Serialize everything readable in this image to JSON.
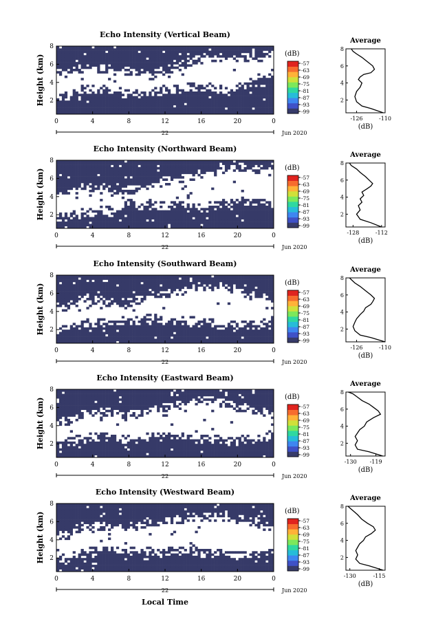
{
  "figure": {
    "common_xlabel": "Local Time",
    "date_label": "Jun 2020",
    "day_label": "22",
    "colorbar_unit": "(dB)",
    "colorbar_ticks": [
      "-57",
      "-63",
      "-69",
      "-75",
      "-81",
      "-87",
      "-93",
      "-99"
    ],
    "colorbar_colors": [
      "#373b6a",
      "#3f51c7",
      "#3e86f0",
      "#27bcd8",
      "#2fd8a0",
      "#7ce85b",
      "#d0e03a",
      "#ffb238",
      "#f76c2e",
      "#e0241f"
    ],
    "heatmap_fill": "#363a68",
    "average_title": "Average",
    "average_xunit": "(dB)"
  },
  "chart_data": [
    {
      "type": "heatmap",
      "title": "Echo Intensity (Vertical Beam)",
      "xlabel": "Local Time",
      "ylabel": "Height (km)",
      "xticks": [
        "0",
        "4",
        "8",
        "12",
        "16",
        "20",
        "0"
      ],
      "yticks": [
        "2",
        "4",
        "6",
        "8"
      ],
      "xlim": [
        0,
        24
      ],
      "ylim": [
        0.5,
        8
      ],
      "profile": {
        "h": [
          0.5,
          1.0,
          2.0,
          2.5,
          3.5,
          5.5,
          6.5,
          7.5,
          8.0
        ],
        "low": [
          2.4,
          3.4,
          3.2,
          2.8,
          3.0,
          3.6,
          3.0,
          4.6,
          5.2
        ],
        "high": [
          5.0,
          5.6,
          5.4,
          5.2,
          4.8,
          6.8,
          6.6,
          6.8,
          7.4
        ]
      }
    },
    {
      "type": "line",
      "title": "Average",
      "xlabel": "(dB)",
      "ylabel": "",
      "xticks": [
        "-126",
        "-110"
      ],
      "yticks": [
        "2",
        "4",
        "6",
        "8"
      ],
      "xlim": [
        -132,
        -110
      ],
      "ylim": [
        0.5,
        8
      ],
      "series": [
        {
          "x": [
            -111,
            -118,
            -123,
            -126,
            -127,
            -126,
            -124,
            -123,
            -125,
            -124,
            -122,
            -118,
            -116,
            -117,
            -120,
            -123,
            -126,
            -128,
            -129
          ],
          "y": [
            0.5,
            1.0,
            1.3,
            1.8,
            2.4,
            3.0,
            3.5,
            4.0,
            4.4,
            4.7,
            5.0,
            5.2,
            5.6,
            6.0,
            6.5,
            7.0,
            7.4,
            7.7,
            8.0
          ]
        }
      ]
    },
    {
      "type": "heatmap",
      "title": "Echo Intensity (Northward Beam)",
      "xlabel": "Local Time",
      "ylabel": "Height (km)",
      "xticks": [
        "0",
        "4",
        "8",
        "12",
        "16",
        "20",
        "0"
      ],
      "yticks": [
        "2",
        "4",
        "6",
        "8"
      ],
      "xlim": [
        0,
        24
      ],
      "ylim": [
        0.5,
        8
      ],
      "profile": {
        "h": [
          0.5,
          1.0,
          2.0,
          2.5,
          3.5,
          5.5,
          6.5,
          7.5,
          8.0
        ],
        "low": [
          1.8,
          2.2,
          2.6,
          3.2,
          3.0,
          2.8,
          3.4,
          3.6,
          3.2
        ],
        "high": [
          4.2,
          5.2,
          4.6,
          4.5,
          5.4,
          6.6,
          7.2,
          7.0,
          6.8
        ]
      }
    },
    {
      "type": "line",
      "title": "Average",
      "xlabel": "(dB)",
      "ylabel": "",
      "xticks": [
        "-128",
        "-112"
      ],
      "yticks": [
        "2",
        "4",
        "6",
        "8"
      ],
      "xlim": [
        -132,
        -110
      ],
      "ylim": [
        0.5,
        8
      ],
      "series": [
        {
          "x": [
            -112,
            -118,
            -124,
            -126,
            -124,
            -125,
            -123,
            -124,
            -122,
            -123,
            -120,
            -118,
            -117,
            -119,
            -121,
            -124,
            -126,
            -129,
            -130
          ],
          "y": [
            0.5,
            1.0,
            1.4,
            2.0,
            2.5,
            3.0,
            3.4,
            3.8,
            4.2,
            4.6,
            5.0,
            5.3,
            5.6,
            6.0,
            6.4,
            6.9,
            7.3,
            7.7,
            8.0
          ]
        }
      ]
    },
    {
      "type": "heatmap",
      "title": "Echo Intensity (Southward Beam)",
      "xlabel": "Local Time",
      "ylabel": "Height (km)",
      "xticks": [
        "0",
        "4",
        "8",
        "12",
        "16",
        "20",
        "0"
      ],
      "yticks": [
        "2",
        "4",
        "6",
        "8"
      ],
      "xlim": [
        0,
        24
      ],
      "ylim": [
        0.5,
        8
      ],
      "profile": {
        "h": [
          0.5,
          1.0,
          2.0,
          2.5,
          3.5,
          5.5,
          6.5,
          7.5,
          8.0
        ],
        "low": [
          2.0,
          2.6,
          2.8,
          3.0,
          3.2,
          2.8,
          2.4,
          2.6,
          3.2
        ],
        "high": [
          4.6,
          5.4,
          5.0,
          4.8,
          5.6,
          6.8,
          6.6,
          5.4,
          5.0
        ]
      }
    },
    {
      "type": "line",
      "title": "Average",
      "xlabel": "(dB)",
      "ylabel": "",
      "xticks": [
        "-126",
        "-110"
      ],
      "yticks": [
        "2",
        "4",
        "6",
        "8"
      ],
      "xlim": [
        -132,
        -110
      ],
      "ylim": [
        0.5,
        8
      ],
      "series": [
        {
          "x": [
            -110,
            -118,
            -124,
            -127,
            -128,
            -127,
            -126,
            -124,
            -122,
            -121,
            -118,
            -117,
            -116,
            -118,
            -121,
            -124,
            -127,
            -129,
            -130
          ],
          "y": [
            0.5,
            1.0,
            1.3,
            1.8,
            2.3,
            2.8,
            3.2,
            3.7,
            4.1,
            4.5,
            4.9,
            5.2,
            5.6,
            6.0,
            6.5,
            7.0,
            7.4,
            7.8,
            8.0
          ]
        }
      ]
    },
    {
      "type": "heatmap",
      "title": "Echo Intensity (Eastward Beam)",
      "xlabel": "Local Time",
      "ylabel": "Height (km)",
      "xticks": [
        "0",
        "4",
        "8",
        "12",
        "16",
        "20",
        "0"
      ],
      "yticks": [
        "2",
        "4",
        "6",
        "8"
      ],
      "xlim": [
        0,
        24
      ],
      "ylim": [
        0.5,
        8
      ],
      "profile": {
        "h": [
          0.5,
          1.0,
          2.0,
          2.5,
          3.5,
          5.5,
          6.5,
          7.5,
          8.0
        ],
        "low": [
          2.2,
          2.6,
          2.8,
          2.5,
          2.7,
          2.6,
          2.3,
          2.6,
          3.0
        ],
        "high": [
          4.4,
          5.4,
          5.6,
          5.0,
          5.8,
          6.8,
          6.2,
          5.6,
          5.2
        ]
      }
    },
    {
      "type": "line",
      "title": "Average",
      "xlabel": "(dB)",
      "ylabel": "",
      "xticks": [
        "-130",
        "-119"
      ],
      "yticks": [
        "2",
        "4",
        "6",
        "8"
      ],
      "xlim": [
        -132,
        -115
      ],
      "ylim": [
        0.5,
        8
      ],
      "series": [
        {
          "x": [
            -116,
            -122,
            -127,
            -128,
            -127,
            -128,
            -127,
            -126,
            -124,
            -123,
            -120,
            -117,
            -118,
            -120,
            -122,
            -125,
            -127,
            -129,
            -131
          ],
          "y": [
            0.5,
            1.0,
            1.3,
            1.8,
            2.3,
            2.8,
            3.2,
            3.6,
            4.0,
            4.5,
            5.0,
            5.4,
            5.8,
            6.2,
            6.6,
            7.0,
            7.4,
            7.8,
            8.0
          ]
        }
      ]
    },
    {
      "type": "heatmap",
      "title": "Echo Intensity (Westward Beam)",
      "xlabel": "Local Time",
      "ylabel": "Height (km)",
      "xticks": [
        "0",
        "4",
        "8",
        "12",
        "16",
        "20",
        "0"
      ],
      "yticks": [
        "2",
        "4",
        "6",
        "8"
      ],
      "xlim": [
        0,
        24
      ],
      "ylim": [
        0.5,
        8
      ],
      "profile": {
        "h": [
          0.5,
          1.0,
          2.0,
          2.5,
          3.5,
          5.5,
          6.5,
          7.5,
          8.0
        ],
        "low": [
          2.0,
          2.6,
          2.8,
          2.6,
          2.8,
          2.6,
          2.2,
          2.6,
          3.0
        ],
        "high": [
          4.4,
          5.2,
          5.6,
          5.2,
          6.0,
          6.6,
          6.4,
          5.8,
          5.2
        ]
      }
    },
    {
      "type": "line",
      "title": "Average",
      "xlabel": "(dB)",
      "ylabel": "",
      "xticks": [
        "-130",
        "-115"
      ],
      "yticks": [
        "2",
        "4",
        "6",
        "8"
      ],
      "xlim": [
        -132,
        -112
      ],
      "ylim": [
        0.5,
        8
      ],
      "series": [
        {
          "x": [
            -113,
            -120,
            -125,
            -127,
            -126,
            -127,
            -126,
            -125,
            -123,
            -122,
            -119,
            -117,
            -118,
            -121,
            -124,
            -126,
            -128,
            -130,
            -131
          ],
          "y": [
            0.5,
            1.0,
            1.3,
            1.8,
            2.3,
            2.8,
            3.2,
            3.6,
            4.0,
            4.4,
            4.8,
            5.2,
            5.6,
            6.0,
            6.5,
            7.0,
            7.4,
            7.8,
            8.0
          ]
        }
      ]
    }
  ]
}
